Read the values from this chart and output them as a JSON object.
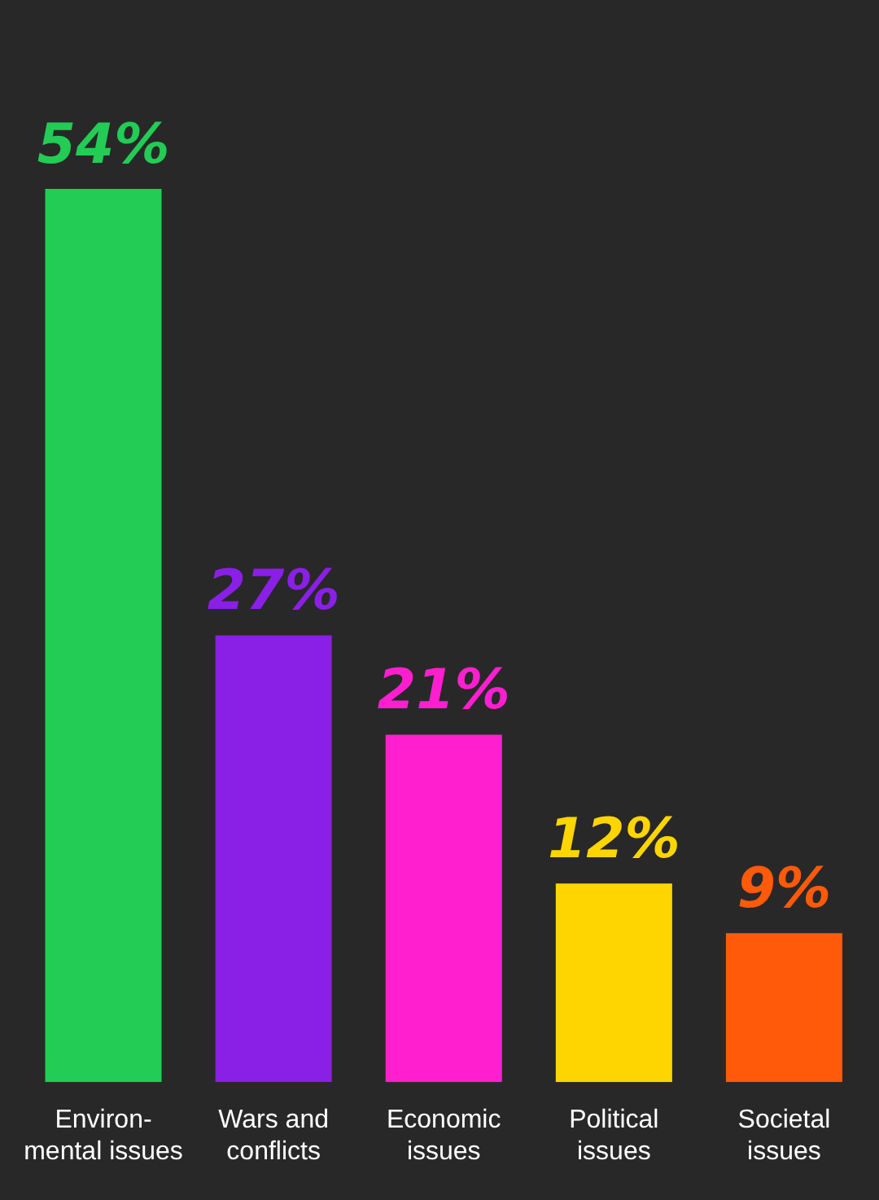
{
  "chart_data": {
    "type": "bar",
    "categories": [
      "Environ-\nmental issues",
      "Wars and\nconflicts",
      "Economic\nissues",
      "Political\nissues",
      "Societal\nissues"
    ],
    "values": [
      54,
      27,
      21,
      12,
      9
    ],
    "colors": [
      "#22cc55",
      "#8a1fe6",
      "#ff1fcf",
      "#ffd500",
      "#ff5a0a"
    ],
    "value_labels": [
      "54%",
      "27%",
      "21%",
      "12%",
      "9%"
    ]
  }
}
